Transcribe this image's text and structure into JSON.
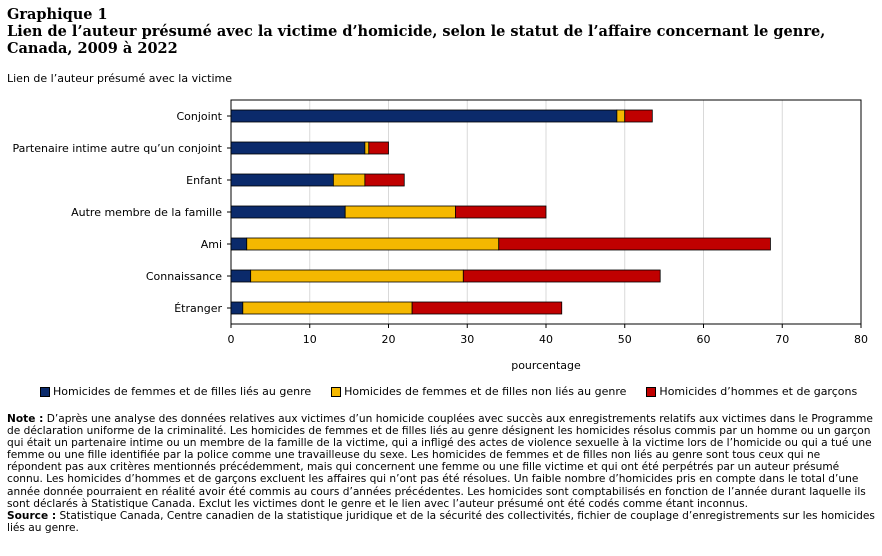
{
  "title": {
    "line1": "Graphique 1",
    "line2": "Lien de l’auteur présumé avec la victime d’homicide, selon le statut de l’affaire concernant le genre,",
    "line3": "Canada, 2009 à 2022"
  },
  "colors": {
    "navy": "#0b2a6b",
    "yellow": "#f5b800",
    "red": "#c00000"
  },
  "chart_data": {
    "type": "bar",
    "orientation": "horizontal",
    "stacked": true,
    "ylabel": "Lien de l’auteur présumé avec la victime",
    "xlabel": "pourcentage",
    "xlim": [
      0,
      80
    ],
    "xticks": [
      "0",
      "10",
      "20",
      "30",
      "40",
      "50",
      "60",
      "70",
      "80"
    ],
    "grid": true,
    "legend_position": "bottom",
    "categories": [
      "Conjoint",
      "Partenaire intime autre qu’un conjoint",
      "Enfant",
      "Autre membre de la famille",
      "Ami",
      "Connaissance",
      "Étranger"
    ],
    "series": [
      {
        "name": "Homicides de femmes et de filles liés au genre",
        "color": "#0b2a6b",
        "values": [
          49.0,
          17.0,
          13.0,
          14.5,
          2.0,
          2.5,
          1.5
        ]
      },
      {
        "name": "Homicides de femmes et de filles non liés au genre",
        "color": "#f5b800",
        "values": [
          1.0,
          0.5,
          4.0,
          14.0,
          32.0,
          27.0,
          21.5
        ]
      },
      {
        "name": "Homicides d’hommes et de garçons",
        "color": "#c00000",
        "values": [
          3.5,
          2.5,
          5.0,
          11.5,
          34.5,
          25.0,
          19.0
        ]
      }
    ]
  },
  "notes": {
    "note_label": "Note :",
    "note_text": " D’après une analyse des données relatives aux victimes d’un homicide couplées avec succès aux enregistrements relatifs aux victimes dans le Programme de déclaration uniforme de la criminalité. Les homicides de femmes et de filles liés au genre désignent les homicides résolus commis par un homme ou un garçon qui était un partenaire intime ou un membre de la famille de la victime, qui a infligé des actes de violence sexuelle à la victime lors de l’homicide ou qui a tué une femme ou une fille identifiée par la police comme une travailleuse du sexe. Les homicides de femmes et de filles non liés au genre sont tous ceux qui ne répondent pas aux critères mentionnés précédemment, mais qui concernent une femme ou une fille victime et qui ont été perpétrés par un auteur présumé connu. Les homicides d’hommes et de garçons excluent les affaires qui n’ont pas été résolues. Un faible nombre d’homicides pris en compte dans le total d’une année donnée pourraient en réalité avoir été commis au cours d’années précédentes. Les homicides sont comptabilisés en fonction de l’année durant laquelle ils sont déclarés à Statistique Canada. Exclut les victimes dont le genre et le lien avec l’auteur présumé ont été codés comme étant inconnus.",
    "source_label": "Source :",
    "source_text": " Statistique Canada, Centre canadien de la statistique juridique et de la sécurité des collectivités, fichier de couplage d’enregistrements sur les homicides liés au genre."
  }
}
